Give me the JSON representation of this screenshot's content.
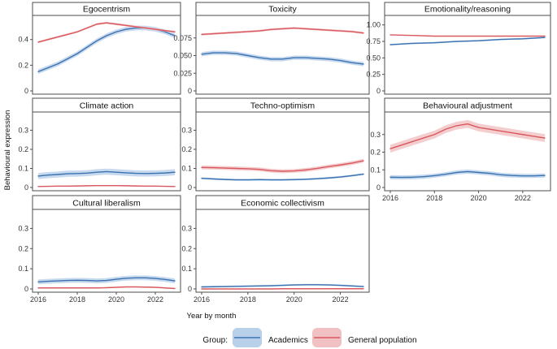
{
  "axis_labels": {
    "x": "Year by month",
    "y": "Behavioural expression"
  },
  "legend": {
    "title": "Group:",
    "items": [
      {
        "label": "Academics",
        "color": "#3a72b0",
        "band": "#b9d0ea"
      },
      {
        "label": "General population",
        "color": "#d9585e",
        "band": "#f1c0c2"
      }
    ]
  },
  "chart_data": [
    {
      "type": "line",
      "title": "Egocentrism",
      "xlim": [
        2016,
        2023
      ],
      "ylim": [
        0,
        0.55
      ],
      "yticks": [
        0,
        0.2,
        0.4
      ],
      "ytick_labels": [
        "0",
        "0.2",
        "0.4"
      ],
      "xticks": [],
      "xtick_labels": [],
      "x": [
        2016,
        2016.5,
        2017,
        2017.5,
        2018,
        2018.5,
        2019,
        2019.5,
        2020,
        2020.5,
        2021,
        2021.5,
        2022,
        2022.5,
        2023
      ],
      "series": [
        {
          "name": "Academics",
          "values": [
            0.15,
            0.18,
            0.21,
            0.25,
            0.29,
            0.34,
            0.39,
            0.43,
            0.46,
            0.48,
            0.49,
            0.49,
            0.48,
            0.46,
            0.43
          ],
          "band": 0.018
        },
        {
          "name": "General population",
          "values": [
            0.38,
            0.4,
            0.42,
            0.44,
            0.46,
            0.49,
            0.52,
            0.53,
            0.52,
            0.51,
            0.5,
            0.49,
            0.48,
            0.47,
            0.46
          ],
          "band": 0.008
        }
      ]
    },
    {
      "type": "line",
      "title": "Toxicity",
      "xlim": [
        2016,
        2023
      ],
      "ylim": [
        0,
        0.1
      ],
      "yticks": [
        0,
        0.025,
        0.05,
        0.075
      ],
      "ytick_labels": [
        "0",
        "0.025",
        "0.050",
        "0.075"
      ],
      "xticks": [],
      "xtick_labels": [],
      "x": [
        2016,
        2016.5,
        2017,
        2017.5,
        2018,
        2018.5,
        2019,
        2019.5,
        2020,
        2020.5,
        2021,
        2021.5,
        2022,
        2022.5,
        2023
      ],
      "series": [
        {
          "name": "Academics",
          "values": [
            0.052,
            0.054,
            0.054,
            0.053,
            0.05,
            0.047,
            0.045,
            0.045,
            0.047,
            0.047,
            0.046,
            0.045,
            0.043,
            0.04,
            0.038
          ],
          "band": 0.003
        },
        {
          "name": "General population",
          "values": [
            0.08,
            0.081,
            0.082,
            0.083,
            0.084,
            0.085,
            0.087,
            0.088,
            0.089,
            0.088,
            0.087,
            0.086,
            0.085,
            0.084,
            0.082
          ],
          "band": 0.0015
        }
      ]
    },
    {
      "type": "line",
      "title": "Emotionality/reasoning",
      "xlim": [
        2016,
        2023
      ],
      "ylim": [
        0,
        1.07
      ],
      "yticks": [
        0,
        0.25,
        0.5,
        0.75,
        1.0
      ],
      "ytick_labels": [
        "0",
        "0.25",
        "0.50",
        "0.75",
        "1.00"
      ],
      "xticks": [],
      "xtick_labels": [],
      "x": [
        2016,
        2017,
        2018,
        2019,
        2020,
        2021,
        2022,
        2023
      ],
      "series": [
        {
          "name": "Academics",
          "values": [
            0.7,
            0.72,
            0.73,
            0.75,
            0.76,
            0.78,
            0.79,
            0.81
          ],
          "band": 0.012
        },
        {
          "name": "General population",
          "values": [
            0.85,
            0.84,
            0.83,
            0.83,
            0.83,
            0.83,
            0.83,
            0.83
          ],
          "band": 0.005
        }
      ]
    },
    {
      "type": "line",
      "title": "Climate action",
      "xlim": [
        2016,
        2023
      ],
      "ylim": [
        0,
        0.37
      ],
      "yticks": [
        0,
        0.1,
        0.2,
        0.3
      ],
      "ytick_labels": [
        "0",
        "0.1",
        "0.2",
        "0.3"
      ],
      "xticks": [],
      "xtick_labels": [],
      "x": [
        2016,
        2016.5,
        2017,
        2017.5,
        2018,
        2018.5,
        2019,
        2019.5,
        2020,
        2020.5,
        2021,
        2021.5,
        2022,
        2022.5,
        2023
      ],
      "series": [
        {
          "name": "Academics",
          "values": [
            0.06,
            0.065,
            0.068,
            0.072,
            0.073,
            0.075,
            0.08,
            0.083,
            0.08,
            0.077,
            0.074,
            0.073,
            0.074,
            0.076,
            0.08
          ],
          "band": 0.016
        },
        {
          "name": "General population",
          "values": [
            0.005,
            0.006,
            0.007,
            0.007,
            0.008,
            0.009,
            0.01,
            0.01,
            0.01,
            0.009,
            0.008,
            0.007,
            0.007,
            0.006,
            0.005
          ],
          "band": 0.002
        }
      ]
    },
    {
      "type": "line",
      "title": "Techno-optimism",
      "xlim": [
        2016,
        2023
      ],
      "ylim": [
        0,
        0.37
      ],
      "yticks": [
        0,
        0.1,
        0.2,
        0.3
      ],
      "ytick_labels": [
        "0",
        "0.1",
        "0.2",
        "0.3"
      ],
      "xticks": [],
      "xtick_labels": [],
      "x": [
        2016,
        2016.5,
        2017,
        2017.5,
        2018,
        2018.5,
        2019,
        2019.5,
        2020,
        2020.5,
        2021,
        2021.5,
        2022,
        2022.5,
        2023
      ],
      "series": [
        {
          "name": "Academics",
          "values": [
            0.048,
            0.045,
            0.042,
            0.04,
            0.04,
            0.041,
            0.04,
            0.04,
            0.041,
            0.043,
            0.046,
            0.05,
            0.055,
            0.062,
            0.07
          ],
          "band": 0.005
        },
        {
          "name": "General population",
          "values": [
            0.105,
            0.104,
            0.102,
            0.1,
            0.098,
            0.095,
            0.088,
            0.085,
            0.087,
            0.092,
            0.1,
            0.11,
            0.118,
            0.128,
            0.14
          ],
          "band": 0.01
        }
      ]
    },
    {
      "type": "line",
      "title": "Behavioural adjustment",
      "xlim": [
        2016,
        2023
      ],
      "ylim": [
        0,
        0.4
      ],
      "yticks": [
        0,
        0.1,
        0.2,
        0.3
      ],
      "ytick_labels": [
        "0",
        "0.1",
        "0.2",
        "0.3"
      ],
      "xticks": [
        2016,
        2018,
        2020,
        2022
      ],
      "xtick_labels": [
        "2016",
        "2018",
        "2020",
        "2022"
      ],
      "x": [
        2016,
        2016.5,
        2017,
        2017.5,
        2018,
        2018.5,
        2019,
        2019.5,
        2020,
        2020.5,
        2021,
        2021.5,
        2022,
        2022.5,
        2023
      ],
      "series": [
        {
          "name": "Academics",
          "values": [
            0.058,
            0.057,
            0.058,
            0.061,
            0.067,
            0.075,
            0.085,
            0.09,
            0.085,
            0.08,
            0.072,
            0.068,
            0.066,
            0.066,
            0.068
          ],
          "band": 0.012
        },
        {
          "name": "General population",
          "values": [
            0.22,
            0.24,
            0.26,
            0.28,
            0.3,
            0.33,
            0.35,
            0.36,
            0.34,
            0.33,
            0.32,
            0.31,
            0.3,
            0.29,
            0.28
          ],
          "band": 0.022
        }
      ]
    },
    {
      "type": "line",
      "title": "Cultural liberalism",
      "xlim": [
        2016,
        2023
      ],
      "ylim": [
        0,
        0.37
      ],
      "yticks": [
        0,
        0.1,
        0.2,
        0.3
      ],
      "ytick_labels": [
        "0",
        "0.1",
        "0.2",
        "0.3"
      ],
      "xticks": [
        2016,
        2018,
        2020,
        2022
      ],
      "xtick_labels": [
        "2016",
        "2018",
        "2020",
        "2022"
      ],
      "x": [
        2016,
        2016.5,
        2017,
        2017.5,
        2018,
        2018.5,
        2019,
        2019.5,
        2020,
        2020.5,
        2021,
        2021.5,
        2022,
        2022.5,
        2023
      ],
      "series": [
        {
          "name": "Academics",
          "values": [
            0.035,
            0.038,
            0.04,
            0.042,
            0.043,
            0.042,
            0.04,
            0.042,
            0.048,
            0.053,
            0.055,
            0.055,
            0.052,
            0.047,
            0.04
          ],
          "band": 0.012
        },
        {
          "name": "General population",
          "values": [
            0.005,
            0.005,
            0.005,
            0.005,
            0.005,
            0.005,
            0.005,
            0.006,
            0.008,
            0.01,
            0.01,
            0.009,
            0.008,
            0.005,
            0.002
          ],
          "band": 0.002
        }
      ]
    },
    {
      "type": "line",
      "title": "Economic collectivism",
      "xlim": [
        2016,
        2023
      ],
      "ylim": [
        0,
        0.37
      ],
      "yticks": [
        0,
        0.1,
        0.2,
        0.3
      ],
      "ytick_labels": [
        "0",
        "0.1",
        "0.2",
        "0.3"
      ],
      "xticks": [
        2016,
        2018,
        2020,
        2022
      ],
      "xtick_labels": [
        "2016",
        "2018",
        "2020",
        "2022"
      ],
      "x": [
        2016,
        2016.5,
        2017,
        2017.5,
        2018,
        2018.5,
        2019,
        2019.5,
        2020,
        2020.5,
        2021,
        2021.5,
        2022,
        2022.5,
        2023
      ],
      "series": [
        {
          "name": "Academics",
          "values": [
            0.01,
            0.011,
            0.012,
            0.013,
            0.014,
            0.015,
            0.016,
            0.018,
            0.02,
            0.021,
            0.021,
            0.02,
            0.018,
            0.015,
            0.012
          ],
          "band": 0.004
        },
        {
          "name": "General population",
          "values": [
            0.0,
            0.0,
            0.0,
            0.0,
            0.0,
            0.0,
            0.0,
            0.001,
            0.001,
            0.001,
            0.001,
            0.001,
            0.001,
            0.001,
            0.001
          ],
          "band": 0.001
        }
      ]
    }
  ]
}
